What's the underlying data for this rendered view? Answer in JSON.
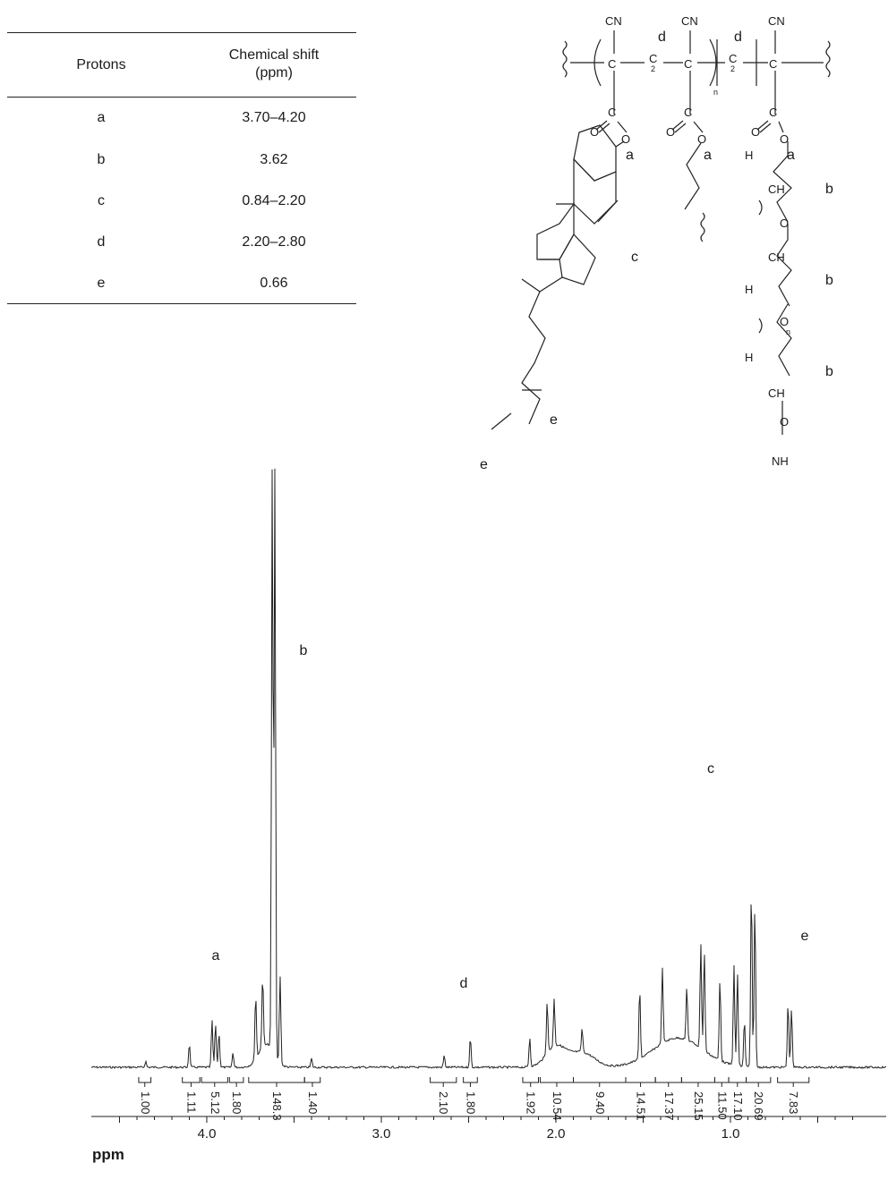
{
  "table": {
    "header_protons": "Protons",
    "header_shift_line1": "Chemical shift",
    "header_shift_line2": "(ppm)",
    "rows": [
      {
        "proton": "a",
        "shift": "3.70–4.20"
      },
      {
        "proton": "b",
        "shift": "3.62"
      },
      {
        "proton": "c",
        "shift": "0.84–2.20"
      },
      {
        "proton": "d",
        "shift": "2.20–2.80"
      },
      {
        "proton": "e",
        "shift": "0.66"
      }
    ]
  },
  "structure": {
    "cn": "CN",
    "c": "C",
    "o": "O",
    "ch2": "CH",
    "h2c": "H",
    "sub2": "2",
    "n": "n",
    "nh2": "NH",
    "labels": {
      "a": "a",
      "b": "b",
      "c": "c",
      "d": "d",
      "e": "e"
    }
  },
  "chart_data": {
    "type": "line",
    "xlabel": "ppm",
    "x_ticks": [
      "4.0",
      "3.0",
      "2.0",
      "1.0"
    ],
    "xlim": [
      4.55,
      0.25
    ],
    "peak_labels": [
      {
        "label": "a",
        "ppm": 3.95
      },
      {
        "label": "b",
        "ppm": 3.45
      },
      {
        "label": "d",
        "ppm": 2.55
      },
      {
        "label": "c",
        "ppm": 1.17
      },
      {
        "label": "e",
        "ppm": 0.66
      }
    ],
    "peaks": [
      {
        "ppm": 4.35,
        "height": 0.01
      },
      {
        "ppm": 4.1,
        "height": 0.04
      },
      {
        "ppm": 3.97,
        "height": 0.08
      },
      {
        "ppm": 3.95,
        "height": 0.075
      },
      {
        "ppm": 3.93,
        "height": 0.06
      },
      {
        "ppm": 3.85,
        "height": 0.025
      },
      {
        "ppm": 3.72,
        "height": 0.11
      },
      {
        "ppm": 3.68,
        "height": 0.12
      },
      {
        "ppm": 3.625,
        "height": 1.0
      },
      {
        "ppm": 3.61,
        "height": 1.0
      },
      {
        "ppm": 3.58,
        "height": 0.15
      },
      {
        "ppm": 3.4,
        "height": 0.015
      },
      {
        "ppm": 2.64,
        "height": 0.02
      },
      {
        "ppm": 2.49,
        "height": 0.05
      },
      {
        "ppm": 2.15,
        "height": 0.05
      },
      {
        "ppm": 2.05,
        "height": 0.09
      },
      {
        "ppm": 2.01,
        "height": 0.08
      },
      {
        "ppm": 1.85,
        "height": 0.04
      },
      {
        "ppm": 1.52,
        "height": 0.12
      },
      {
        "ppm": 1.39,
        "height": 0.13
      },
      {
        "ppm": 1.25,
        "height": 0.09
      },
      {
        "ppm": 1.17,
        "height": 0.18
      },
      {
        "ppm": 1.15,
        "height": 0.17
      },
      {
        "ppm": 1.06,
        "height": 0.14
      },
      {
        "ppm": 0.98,
        "height": 0.17
      },
      {
        "ppm": 0.96,
        "height": 0.16
      },
      {
        "ppm": 0.92,
        "height": 0.08
      },
      {
        "ppm": 0.88,
        "height": 0.31
      },
      {
        "ppm": 0.86,
        "height": 0.28
      },
      {
        "ppm": 0.67,
        "height": 0.11
      },
      {
        "ppm": 0.65,
        "height": 0.1
      }
    ],
    "integrals": [
      {
        "value": "1.00",
        "from": 4.39,
        "to": 4.32
      },
      {
        "value": "1.11",
        "from": 4.14,
        "to": 4.04
      },
      {
        "value": "5.12",
        "from": 4.03,
        "to": 3.88
      },
      {
        "value": "1.80",
        "from": 3.87,
        "to": 3.79
      },
      {
        "value": "148.3",
        "from": 3.76,
        "to": 3.44
      },
      {
        "value": "1.40",
        "from": 3.44,
        "to": 3.35
      },
      {
        "value": "2.10",
        "from": 2.72,
        "to": 2.57
      },
      {
        "value": "1.80",
        "from": 2.53,
        "to": 2.45
      },
      {
        "value": "1.92",
        "from": 2.19,
        "to": 2.1
      },
      {
        "value": "10.54",
        "from": 2.09,
        "to": 1.9
      },
      {
        "value": "9.40",
        "from": 1.9,
        "to": 1.6
      },
      {
        "value": "14.51",
        "from": 1.6,
        "to": 1.43
      },
      {
        "value": "17.37",
        "from": 1.43,
        "to": 1.28
      },
      {
        "value": "25.15",
        "from": 1.28,
        "to": 1.09
      },
      {
        "value": "11.50",
        "from": 1.09,
        "to": 1.01
      },
      {
        "value": "17.10",
        "from": 1.01,
        "to": 0.91
      },
      {
        "value": "20.69",
        "from": 0.91,
        "to": 0.77
      },
      {
        "value": "7.83",
        "from": 0.73,
        "to": 0.55
      }
    ]
  }
}
